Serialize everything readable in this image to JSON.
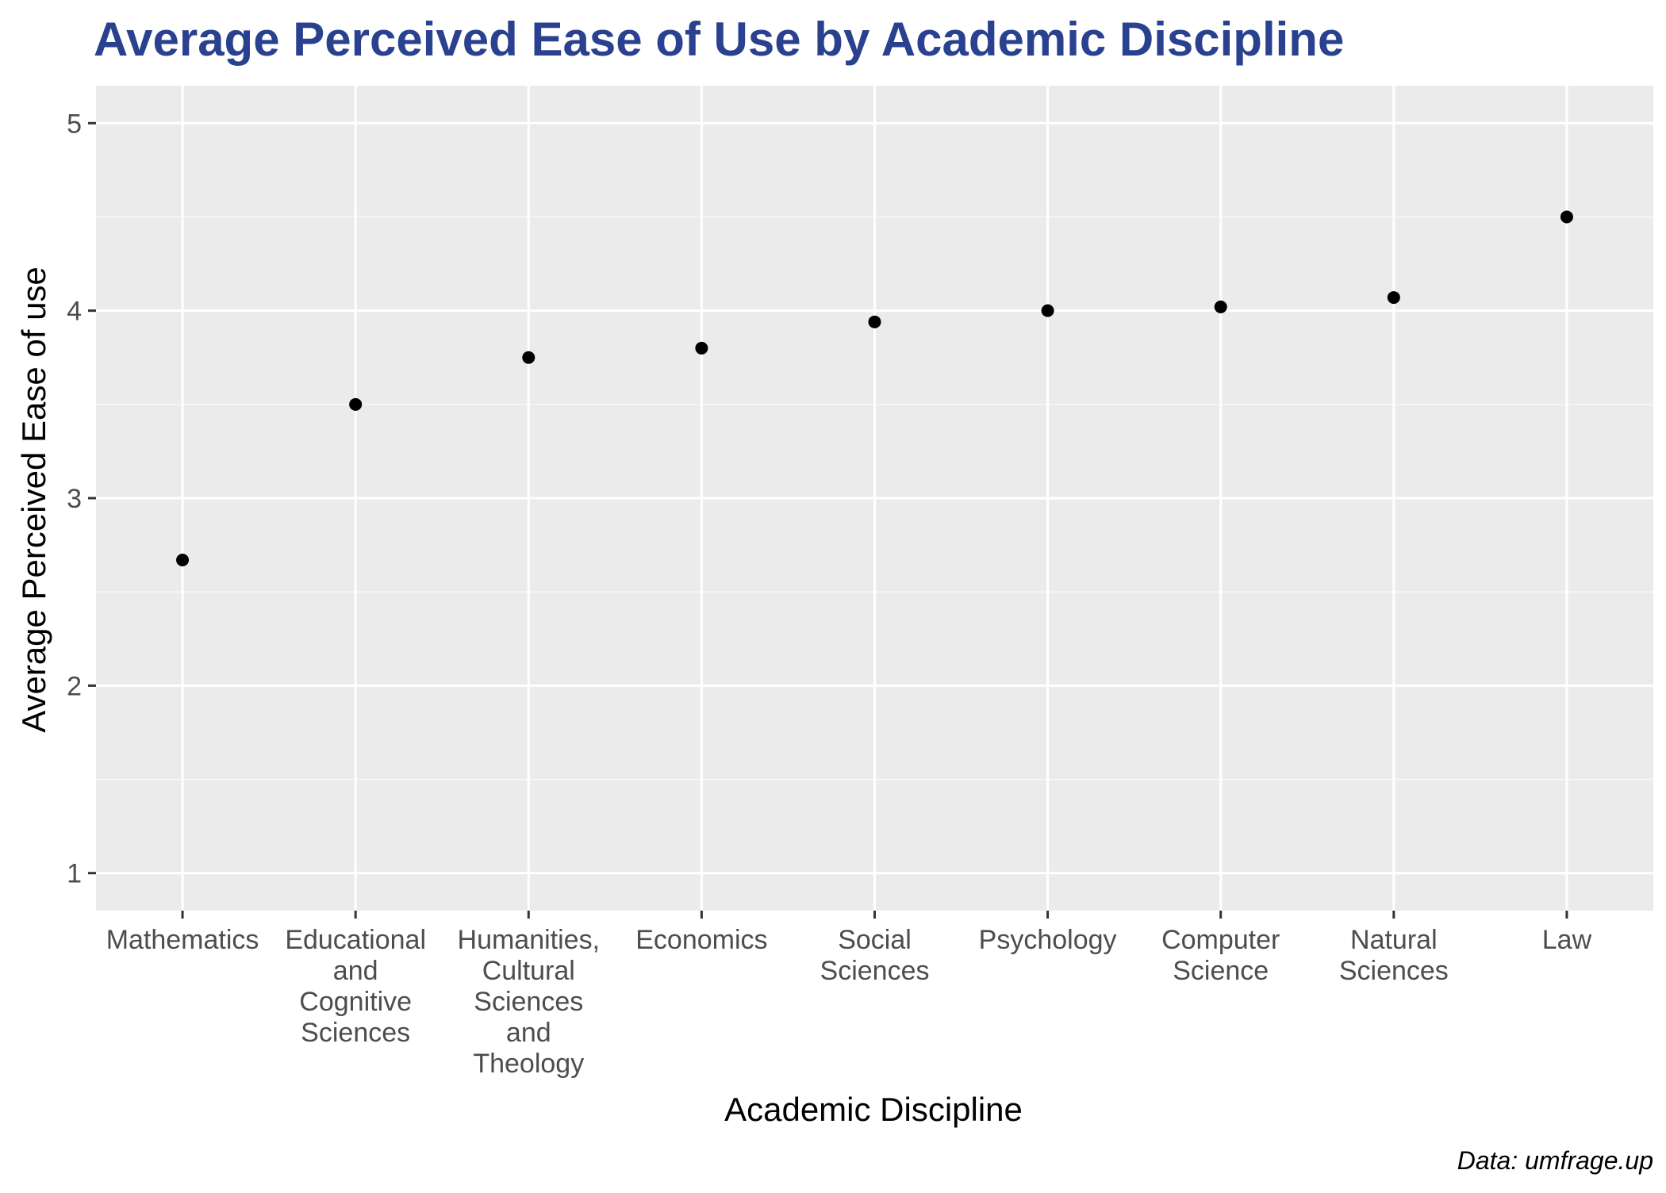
{
  "colors": {
    "title": "#2a4190",
    "panel_background": "#ebebeb",
    "grid_major": "#ffffff",
    "grid_minor": "#f7f7f7",
    "point": "#000000",
    "tick": "#333333"
  },
  "chart_data": {
    "type": "scatter",
    "title": "Average Perceived Ease of Use by Academic Discipline",
    "xlabel": "Academic Discipline",
    "ylabel": "Average Perceived Ease of use",
    "caption": "Data: umfrage.up",
    "categories": [
      [
        "Mathematics"
      ],
      [
        "Educational",
        "and",
        "Cognitive",
        "Sciences"
      ],
      [
        "Humanities,",
        "Cultural",
        "Sciences",
        "and",
        "Theology"
      ],
      [
        "Economics"
      ],
      [
        "Social",
        "Sciences"
      ],
      [
        "Psychology"
      ],
      [
        "Computer",
        "Science"
      ],
      [
        "Natural",
        "Sciences"
      ],
      [
        "Law"
      ]
    ],
    "values": [
      2.67,
      3.5,
      3.75,
      3.8,
      3.94,
      4.0,
      4.02,
      4.07,
      4.5
    ],
    "ylim": [
      0.8,
      5.2
    ],
    "yticks": [
      1,
      2,
      3,
      4,
      5
    ],
    "grid": true
  }
}
